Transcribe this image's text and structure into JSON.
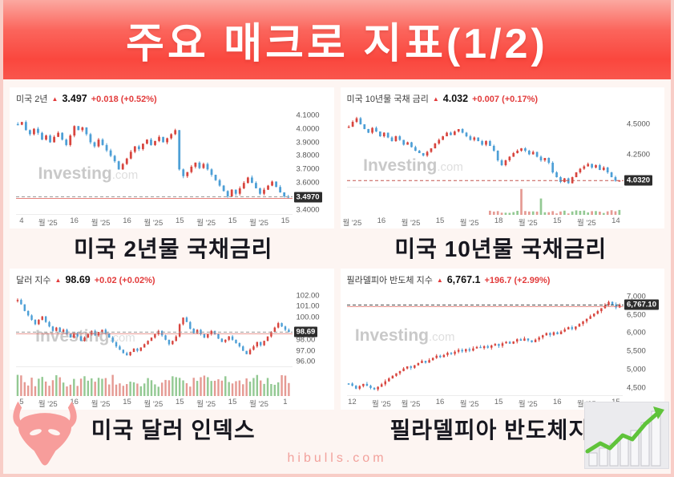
{
  "page": {
    "title": "주요 매크로 지표(1/2)",
    "footer": "hibulls.com"
  },
  "watermark": {
    "bold": "Investing",
    "light": ".com"
  },
  "colors": {
    "up": "#d8453e",
    "down": "#4d9fd6",
    "vol_up": "#93c993",
    "vol_down": "#e59a93",
    "accent_red": "#e23b3b",
    "banner_top": "#fba8a0",
    "banner_bottom": "#fa473e",
    "badge_bg": "#2d2d2d"
  },
  "chart_data": [
    {
      "type": "candlestick",
      "title": "미국 2년",
      "arrow": "▲",
      "last": "3.497",
      "change": "+0.018 (+0.52%)",
      "caption": "미국 2년물 국채금리",
      "price_label": "3.4970",
      "last_value": 3.497,
      "ylim": [
        3.37,
        4.14
      ],
      "y_ticks": [
        {
          "v": 4.1,
          "label": "4.1000"
        },
        {
          "v": 4.0,
          "label": "4.0000"
        },
        {
          "v": 3.9,
          "label": "3.9000"
        },
        {
          "v": 3.8,
          "label": "3.8000"
        },
        {
          "v": 3.7,
          "label": "3.7000"
        },
        {
          "v": 3.6,
          "label": "3.6000"
        },
        {
          "v": 3.4,
          "label": "3.4000"
        }
      ],
      "x_ticks": [
        "4",
        "월 '25",
        "16",
        "월 '25",
        "16",
        "월 '25",
        "15",
        "월 '25",
        "15",
        "월 '25",
        "15"
      ],
      "close": [
        4.03,
        4.05,
        3.99,
        3.96,
        4.0,
        3.97,
        3.92,
        3.95,
        3.9,
        3.94,
        3.97,
        3.92,
        3.88,
        3.95,
        4.02,
        3.99,
        4.01,
        3.96,
        3.9,
        3.87,
        3.92,
        3.88,
        3.84,
        3.8,
        3.76,
        3.7,
        3.74,
        3.78,
        3.83,
        3.87,
        3.85,
        3.89,
        3.92,
        3.88,
        3.91,
        3.94,
        3.9,
        3.93,
        3.96,
        3.99,
        3.7,
        3.65,
        3.68,
        3.72,
        3.75,
        3.71,
        3.74,
        3.7,
        3.66,
        3.62,
        3.58,
        3.54,
        3.5,
        3.55,
        3.52,
        3.56,
        3.6,
        3.64,
        3.6,
        3.56,
        3.52,
        3.55,
        3.58,
        3.61,
        3.57,
        3.53,
        3.5,
        3.497
      ],
      "seed": 11,
      "line_style": "gray-red",
      "volume": null
    },
    {
      "type": "candlestick",
      "title": "미국 10년물 국채 금리",
      "arrow": "▲",
      "last": "4.032",
      "change": "+0.007 (+0.17%)",
      "caption": "미국 10년물 국채금리",
      "price_label": "4.0320",
      "last_value": 4.032,
      "ylim": [
        3.98,
        4.62
      ],
      "y_ticks": [
        {
          "v": 4.5,
          "label": "4.5000"
        },
        {
          "v": 4.25,
          "label": "4.2500"
        }
      ],
      "x_ticks": [
        "월 '25",
        "16",
        "월 '25",
        "15",
        "월 '25",
        "18",
        "월 '25",
        "15",
        "월 '25",
        "14"
      ],
      "close": [
        4.48,
        4.52,
        4.55,
        4.5,
        4.46,
        4.43,
        4.47,
        4.44,
        4.4,
        4.43,
        4.39,
        4.36,
        4.4,
        4.37,
        4.33,
        4.35,
        4.31,
        4.28,
        4.26,
        4.24,
        4.27,
        4.3,
        4.34,
        4.37,
        4.4,
        4.43,
        4.41,
        4.44,
        4.46,
        4.43,
        4.4,
        4.37,
        4.39,
        4.36,
        4.33,
        4.36,
        4.32,
        4.28,
        4.2,
        4.16,
        4.2,
        4.23,
        4.26,
        4.28,
        4.3,
        4.28,
        4.25,
        4.27,
        4.23,
        4.2,
        4.22,
        4.18,
        4.1,
        4.06,
        4.02,
        4.05,
        4.01,
        4.06,
        4.1,
        4.13,
        4.15,
        4.17,
        4.14,
        4.16,
        4.12,
        4.14,
        4.1,
        4.06,
        4.03,
        4.032
      ],
      "seed": 29,
      "line_style": "red-dash",
      "volume": {
        "mode": "sparse",
        "start_frac": 0.52,
        "spikes": [
          {
            "frac": 0.63,
            "h": 0.95,
            "up": false
          },
          {
            "frac": 0.7,
            "h": 0.6,
            "up": true
          }
        ]
      }
    },
    {
      "type": "candlestick",
      "title": "달러 지수",
      "arrow": "▲",
      "last": "98.69",
      "change": "+0.02 (+0.02%)",
      "caption": "미국 달러 인덱스",
      "price_label": "98.69",
      "last_value": 98.69,
      "ylim": [
        95.6,
        102.4
      ],
      "y_ticks": [
        {
          "v": 102,
          "label": "102.00"
        },
        {
          "v": 101,
          "label": "101.00"
        },
        {
          "v": 100,
          "label": "100.00"
        },
        {
          "v": 98,
          "label": "98.00"
        },
        {
          "v": 97,
          "label": "97.00"
        },
        {
          "v": 96,
          "label": "96.00"
        }
      ],
      "x_ticks": [
        "5",
        "월 '25",
        "16",
        "월 '25",
        "15",
        "월 '25",
        "15",
        "월 '25",
        "15",
        "월 '25",
        "1"
      ],
      "close": [
        101.6,
        101.2,
        100.6,
        100.2,
        99.8,
        99.4,
        99.8,
        100.1,
        99.6,
        99.2,
        98.8,
        99.1,
        98.7,
        98.9,
        98.5,
        98.2,
        98.6,
        98.3,
        97.9,
        98.2,
        98.5,
        98.8,
        98.4,
        98.7,
        98.9,
        98.6,
        98.2,
        97.8,
        97.4,
        97.1,
        96.8,
        96.6,
        96.9,
        97.2,
        97.0,
        97.3,
        97.6,
        97.9,
        98.2,
        98.5,
        98.8,
        98.4,
        98.0,
        97.6,
        97.9,
        98.3,
        99.4,
        100.0,
        99.6,
        99.0,
        98.6,
        98.9,
        98.5,
        98.2,
        98.5,
        98.8,
        98.5,
        98.1,
        97.8,
        98.0,
        98.3,
        98.0,
        97.7,
        97.4,
        97.0,
        96.7,
        97.1,
        97.4,
        97.8,
        97.5,
        97.9,
        98.3,
        98.7,
        99.1,
        99.5,
        99.2,
        98.9,
        98.69
      ],
      "seed": 47,
      "line_style": "gray-red",
      "volume": {
        "mode": "dense"
      }
    },
    {
      "type": "candlestick",
      "title": "필라델피아 반도체 지수",
      "arrow": "▲",
      "last": "6,767.1",
      "change": "+196.7 (+2.99%)",
      "caption": "필라델피아 반도체지수",
      "price_label": "6,767.10",
      "last_value": 6767.1,
      "ylim": [
        4300,
        7150
      ],
      "y_ticks": [
        {
          "v": 7000,
          "label": "7,000"
        },
        {
          "v": 6500,
          "label": "6,500"
        },
        {
          "v": 6000,
          "label": "6,000"
        },
        {
          "v": 5500,
          "label": "5,500"
        },
        {
          "v": 5000,
          "label": "5,000"
        },
        {
          "v": 4500,
          "label": "4,500"
        }
      ],
      "x_ticks": [
        "12",
        "월 '25",
        "월 '25",
        "16",
        "월 '25",
        "15",
        "월 '25",
        "16",
        "월 '25",
        "15"
      ],
      "close": [
        4620,
        4560,
        4480,
        4550,
        4610,
        4560,
        4500,
        4460,
        4530,
        4600,
        4680,
        4760,
        4830,
        4900,
        4960,
        5030,
        5090,
        5050,
        5120,
        5180,
        5240,
        5190,
        5260,
        5320,
        5380,
        5340,
        5400,
        5460,
        5430,
        5490,
        5540,
        5500,
        5560,
        5520,
        5580,
        5620,
        5590,
        5640,
        5600,
        5660,
        5700,
        5650,
        5720,
        5760,
        5710,
        5770,
        5830,
        5790,
        5850,
        5800,
        5750,
        5820,
        5880,
        5940,
        6000,
        5950,
        6020,
        5970,
        6040,
        6100,
        6160,
        6110,
        6180,
        6250,
        6320,
        6390,
        6460,
        6530,
        6600,
        6680,
        6760,
        6850,
        6780,
        6700,
        6767.1
      ],
      "seed": 83,
      "line_style": "dark-dash",
      "volume": null
    }
  ]
}
